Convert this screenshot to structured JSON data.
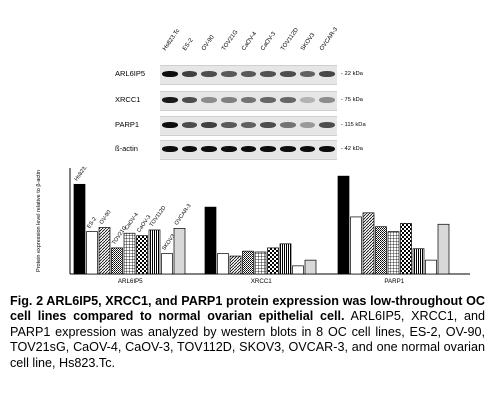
{
  "blot": {
    "lanes": [
      "Hs823.Tc",
      "ES-2",
      "OV-90",
      "TOV21G",
      "CaOV-4",
      "CaOV-3",
      "TOV112D",
      "SKOV3",
      "OVCAR-3"
    ],
    "rows": [
      {
        "label": "ARL6IP5",
        "kda": "22 kDa",
        "intensity": [
          0.95,
          0.75,
          0.7,
          0.65,
          0.65,
          0.68,
          0.7,
          0.62,
          0.72
        ]
      },
      {
        "label": "XRCC1",
        "kda": "75 kDa",
        "intensity": [
          0.9,
          0.7,
          0.45,
          0.5,
          0.55,
          0.6,
          0.6,
          0.3,
          0.45
        ]
      },
      {
        "label": "PARP1",
        "kda": "115 kDa",
        "intensity": [
          0.95,
          0.7,
          0.75,
          0.65,
          0.62,
          0.7,
          0.55,
          0.4,
          0.7
        ]
      },
      {
        "label": "ß-actin",
        "kda": "42 kDa",
        "intensity": [
          0.95,
          0.95,
          0.95,
          0.95,
          0.95,
          0.95,
          0.95,
          0.95,
          0.95
        ]
      }
    ]
  },
  "chart_data": {
    "type": "bar",
    "ylabel": "Protein expression level relative to β-actin",
    "categories": [
      "ARL6IP5",
      "XRCC1",
      "PARP1"
    ],
    "series": [
      {
        "name": "Hs823.Tc",
        "values": [
          1.1,
          0.82,
          1.2
        ],
        "pattern": "solid-black"
      },
      {
        "name": "ES-2",
        "values": [
          0.52,
          0.25,
          0.7
        ],
        "pattern": "white"
      },
      {
        "name": "OV-90",
        "values": [
          0.57,
          0.22,
          0.75
        ],
        "pattern": "diagonal"
      },
      {
        "name": "TOV21G",
        "values": [
          0.32,
          0.28,
          0.58
        ],
        "pattern": "dense-dots"
      },
      {
        "name": "CaOV-4",
        "values": [
          0.5,
          0.27,
          0.52
        ],
        "pattern": "grid"
      },
      {
        "name": "CaOV-3",
        "values": [
          0.47,
          0.32,
          0.62
        ],
        "pattern": "checker"
      },
      {
        "name": "TOV112D",
        "values": [
          0.54,
          0.37,
          0.31
        ],
        "pattern": "vertical-stripes"
      },
      {
        "name": "SKOV3",
        "values": [
          0.25,
          0.1,
          0.17
        ],
        "pattern": "white"
      },
      {
        "name": "OVCAR-3",
        "values": [
          0.56,
          0.17,
          0.61
        ],
        "pattern": "light-gray"
      }
    ],
    "ylim": [
      0,
      1.3
    ]
  },
  "caption": {
    "bold": "Fig. 2   ARL6IP5, XRCC1, and PARP1 protein expression was low-throughout OC cell lines compared to normal ovarian epithelial cell.",
    "text": " ARL6IP5, XRCC1, and PARP1 expression was analyzed by western blots in 8 OC cell lines, ES-2, OV-90, TOV21sG, CaOV-4, CaOV-3, TOV112D, SKOV3, OVCAR-3, and one normal ovarian cell line, Hs823.Tc."
  }
}
